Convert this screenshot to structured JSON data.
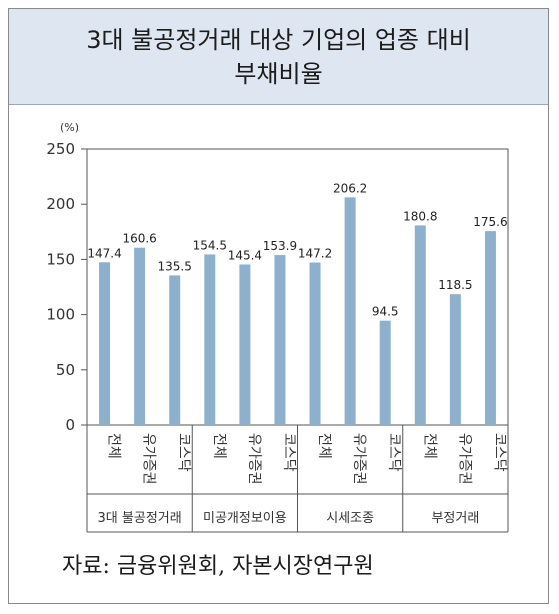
{
  "header": {
    "title_line1": "3대 불공정거래 대상 기업의 업종 대비",
    "title_line2": "부채비율"
  },
  "source_note": "자료: 금융위원회, 자본시장연구원",
  "chart_data": {
    "type": "bar",
    "unit_label": "(%)",
    "ylim": [
      0,
      250
    ],
    "yticks": [
      "0",
      "50",
      "100",
      "150",
      "200",
      "250"
    ],
    "groups": [
      {
        "name": "3대 불공정거래",
        "categories": [
          "전체",
          "유가증권",
          "코스닥"
        ],
        "values": [
          147.4,
          160.6,
          135.5
        ],
        "labels": [
          "147.4",
          "160.6",
          "135.5"
        ]
      },
      {
        "name": "미공개정보이용",
        "categories": [
          "전체",
          "유가증권",
          "코스닥"
        ],
        "values": [
          154.5,
          145.4,
          153.9
        ],
        "labels": [
          "154.5",
          "145.4",
          "153.9"
        ]
      },
      {
        "name": "시세조종",
        "categories": [
          "전체",
          "유가증권",
          "코스닥"
        ],
        "values": [
          147.2,
          206.2,
          94.5
        ],
        "labels": [
          "147.2",
          "206.2",
          "94.5"
        ]
      },
      {
        "name": "부정거래",
        "categories": [
          "전체",
          "유가증권",
          "코스닥"
        ],
        "values": [
          180.8,
          118.5,
          175.6
        ],
        "labels": [
          "180.8",
          "118.5",
          "175.6"
        ]
      }
    ],
    "bar_color": "#8fb0cc",
    "grid": false
  }
}
